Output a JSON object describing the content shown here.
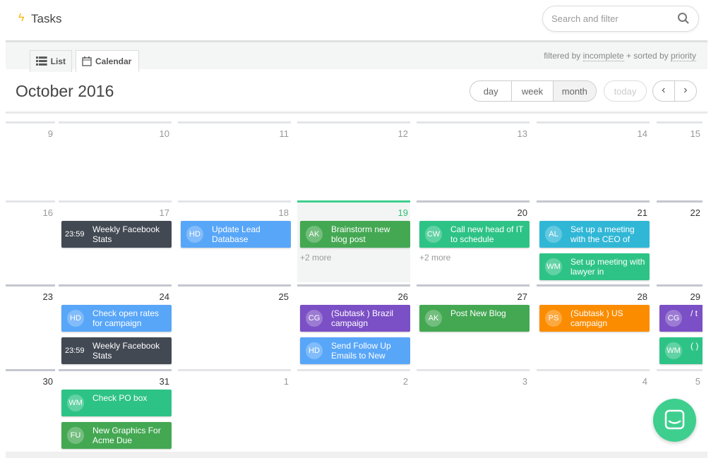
{
  "app": {
    "title": "Tasks",
    "bolt_color": "#f5b800"
  },
  "search": {
    "placeholder": "Search and filter"
  },
  "tabs": [
    {
      "label": "List",
      "icon": "list-icon"
    },
    {
      "label": "Calendar",
      "icon": "calendar-icon",
      "active": true
    }
  ],
  "filter": {
    "pre": "filtered by ",
    "filter": "incomplete",
    "mid": " + sorted by ",
    "sort": "priority"
  },
  "header": {
    "month": "October 2016",
    "views": [
      "day",
      "week",
      "month"
    ],
    "active_view": "month",
    "today": "today"
  },
  "colors": {
    "dark": "#424953",
    "blue": "#58a6f8",
    "green": "#44a853",
    "teal": "#2ec386",
    "cyan": "#31b7d6",
    "purple": "#7b4fc5",
    "orange": "#fb8c00",
    "today": "#3ecf8e"
  },
  "weeks": [
    {
      "days": [
        {
          "num": "9"
        },
        {
          "num": "10"
        },
        {
          "num": "11"
        },
        {
          "num": "12"
        },
        {
          "num": "13"
        },
        {
          "num": "14"
        },
        {
          "num": "15"
        }
      ]
    },
    {
      "days": [
        {
          "num": "16"
        },
        {
          "num": "17",
          "events": [
            {
              "time": "23:59",
              "title": "Weekly Facebook Stats",
              "color": "dark"
            }
          ]
        },
        {
          "num": "18",
          "events": [
            {
              "avatar": "HD",
              "title": "Update Lead Database",
              "color": "blue"
            }
          ]
        },
        {
          "num": "19",
          "today": true,
          "events": [
            {
              "avatar": "AK",
              "title": "Brainstorm new blog post",
              "color": "green"
            }
          ],
          "more": "+2 more"
        },
        {
          "num": "20",
          "dark": true,
          "events": [
            {
              "avatar": "CW",
              "title": "Call new head of IT to schedule",
              "color": "teal"
            }
          ],
          "more": "+2 more"
        },
        {
          "num": "21",
          "dark": true,
          "events": [
            {
              "avatar": "AL",
              "title": "Set up a meeting with the CEO of",
              "color": "cyan"
            },
            {
              "avatar": "WM",
              "title": "Set up meeting with lawyer in",
              "color": "teal"
            }
          ]
        },
        {
          "num": "22",
          "dark": true
        }
      ]
    },
    {
      "days": [
        {
          "num": "23",
          "dark": true
        },
        {
          "num": "24",
          "dark": true,
          "events": [
            {
              "avatar": "HD",
              "title": "Check open rates for campaign",
              "color": "blue"
            },
            {
              "time": "23:59",
              "title": "Weekly Facebook Stats",
              "color": "dark"
            }
          ]
        },
        {
          "num": "25",
          "dark": true
        },
        {
          "num": "26",
          "dark": true,
          "events": [
            {
              "avatar": "CG",
              "title": "(Subtask ) Brazil campaign",
              "color": "purple"
            },
            {
              "avatar": "HD",
              "title": "Send Follow Up Emails to New",
              "color": "blue"
            }
          ]
        },
        {
          "num": "27",
          "dark": true,
          "events": [
            {
              "avatar": "AK",
              "title": "Post New Blog",
              "color": "green"
            }
          ]
        },
        {
          "num": "28",
          "dark": true,
          "events": [
            {
              "avatar": "PS",
              "title": "(Subtask ) US campaign",
              "color": "orange"
            }
          ]
        },
        {
          "num": "29",
          "dark": true,
          "events": [
            {
              "avatar": "CG",
              "title": "/ t",
              "color": "purple"
            },
            {
              "avatar": "WM",
              "title": "( )",
              "color": "teal"
            }
          ]
        }
      ]
    },
    {
      "days": [
        {
          "num": "30",
          "dark": true
        },
        {
          "num": "31",
          "dark": true,
          "events": [
            {
              "avatar": "WM",
              "title": "Check PO box",
              "color": "teal"
            },
            {
              "avatar": "FU",
              "title": "New Graphics For Acme Due",
              "color": "green"
            }
          ]
        },
        {
          "num": "1",
          "other": true
        },
        {
          "num": "2",
          "other": true
        },
        {
          "num": "3",
          "other": true
        },
        {
          "num": "4",
          "other": true
        },
        {
          "num": "5",
          "other": true
        }
      ]
    }
  ]
}
